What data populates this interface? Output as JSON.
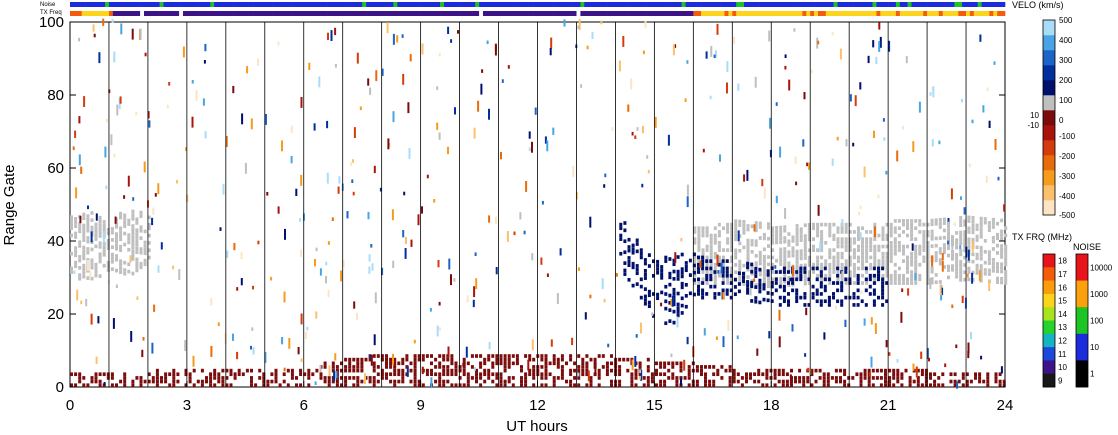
{
  "chart_data": {
    "type": "heatmap",
    "title": "",
    "xlabel": "UT hours",
    "ylabel": "Range Gate",
    "xlim": [
      0,
      24
    ],
    "ylim": [
      0,
      100
    ],
    "x_ticks": [
      0,
      3,
      6,
      9,
      12,
      15,
      18,
      21,
      24
    ],
    "y_ticks": [
      0,
      20,
      40,
      60,
      80,
      100
    ],
    "hour_grid": true,
    "top_strips": {
      "noise_label": "Noise",
      "txfreq_label": "TX Freq"
    },
    "velocity_colorbar": {
      "title": "VELO (km/s)",
      "tick_labels": [
        "500",
        "400",
        "300",
        "200",
        "100",
        "10",
        "0",
        "-10",
        "-100",
        "-200",
        "-300",
        "-400",
        "-500"
      ],
      "colors": [
        "#fde4c4",
        "#fcc06c",
        "#f59c1c",
        "#e86c0c",
        "#d43c0c",
        "#a8140c",
        "#7c0c0c",
        "#bfbfbf",
        "#00106c",
        "#00309c",
        "#1c64c8",
        "#48a4e4",
        "#a8dcf8"
      ]
    },
    "txfreq_colorbar": {
      "title": "TX FRQ (MHz)",
      "tick_labels": [
        "18",
        "17",
        "16",
        "15",
        "14",
        "13",
        "12",
        "11",
        "10",
        "9"
      ],
      "colors": [
        "#e8141c",
        "#f45c0c",
        "#fc9c0c",
        "#fcd41c",
        "#a8e41c",
        "#24d42c",
        "#14b4c4",
        "#1c48dc",
        "#3c1488",
        "#181818"
      ]
    },
    "noise_colorbar": {
      "title": "NOISE",
      "tick_labels": [
        "10000",
        "1000",
        "100",
        "10",
        "1"
      ],
      "colors": [
        "#e8141c",
        "#fca00c",
        "#1cc424",
        "#1c2cdc",
        "#000000"
      ]
    },
    "scatter_regions": [
      {
        "label": "ground scatter",
        "color": "#bfbfbf",
        "x": [
          0.0,
          0.5,
          1.0,
          1.5,
          2.0
        ],
        "gate_low": [
          30,
          28,
          32,
          30,
          34
        ],
        "gate_high": [
          46,
          48,
          44,
          50,
          46
        ]
      },
      {
        "label": "ground scatter",
        "color": "#bfbfbf",
        "x": [
          16.0,
          17.0,
          18.0,
          19.0,
          20.0,
          21.0,
          22.0,
          23.0,
          24.0
        ],
        "gate_low": [
          28,
          28,
          27,
          28,
          28,
          28,
          28,
          29,
          28
        ],
        "gate_high": [
          44,
          45,
          44,
          44,
          44,
          45,
          45,
          46,
          45
        ]
      },
      {
        "label": "negative velocity band",
        "color": "#00106c",
        "x": [
          14.1,
          14.5,
          15.0,
          15.5,
          16.0,
          17.0,
          18.0,
          19.0,
          20.0,
          21.0
        ],
        "gate_low": [
          32,
          26,
          18,
          16,
          24,
          24,
          22,
          22,
          22,
          22
        ],
        "gate_high": [
          46,
          40,
          34,
          36,
          36,
          34,
          32,
          32,
          32,
          32
        ]
      },
      {
        "label": "near-range scatter",
        "color": "#7c0c0c",
        "x": [
          0,
          2,
          4,
          6,
          8,
          10,
          12,
          14,
          16,
          18,
          20,
          22,
          24
        ],
        "gate_low": [
          0,
          0,
          0,
          0,
          0,
          0,
          0,
          0,
          0,
          0,
          0,
          0,
          0
        ],
        "gate_high": [
          3,
          4,
          4,
          5,
          9,
          8,
          8,
          8,
          6,
          4,
          4,
          4,
          3
        ]
      }
    ]
  }
}
